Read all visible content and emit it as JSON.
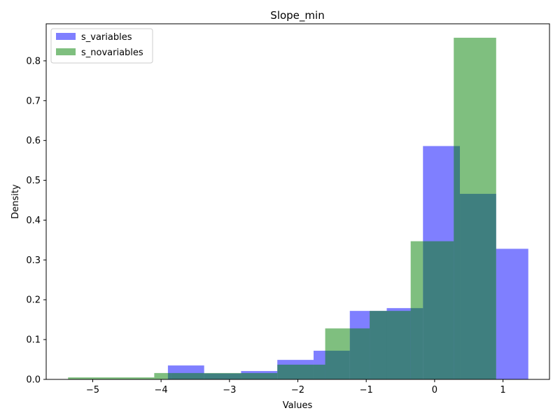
{
  "chart_data": {
    "type": "bar",
    "title": "Slope_min",
    "xlabel": "Values",
    "ylabel": "Density",
    "xlim": [
      -5.68,
      1.68
    ],
    "ylim": [
      0,
      0.893
    ],
    "xticks": [
      -5,
      -4,
      -3,
      -2,
      -1,
      0,
      1
    ],
    "xtick_labels": [
      "−5",
      "−4",
      "−3",
      "−2",
      "−1",
      "0",
      "1"
    ],
    "yticks": [
      0.0,
      0.1,
      0.2,
      0.3,
      0.4,
      0.5,
      0.6,
      0.7,
      0.8
    ],
    "ytick_labels": [
      "0.0",
      "0.1",
      "0.2",
      "0.3",
      "0.4",
      "0.5",
      "0.6",
      "0.7",
      "0.8"
    ],
    "legend_position": "upper-left",
    "series": [
      {
        "name": "s_variables",
        "color": "#0000ff",
        "opacity": 0.5,
        "bins": [
          {
            "x0": -3.9,
            "x1": -3.37,
            "value": 0.035
          },
          {
            "x0": -3.37,
            "x1": -2.83,
            "value": 0.015
          },
          {
            "x0": -2.83,
            "x1": -2.3,
            "value": 0.021
          },
          {
            "x0": -2.3,
            "x1": -1.77,
            "value": 0.049
          },
          {
            "x0": -1.77,
            "x1": -1.24,
            "value": 0.072
          },
          {
            "x0": -1.24,
            "x1": -0.7,
            "value": 0.172
          },
          {
            "x0": -0.7,
            "x1": -0.17,
            "value": 0.179
          },
          {
            "x0": -0.17,
            "x1": 0.37,
            "value": 0.586
          },
          {
            "x0": 0.37,
            "x1": 0.9,
            "value": 0.466
          },
          {
            "x0": 0.9,
            "x1": 1.37,
            "value": 0.328
          }
        ]
      },
      {
        "name": "s_novariables",
        "color": "#008000",
        "opacity": 0.5,
        "bins": [
          {
            "x0": -5.36,
            "x1": -4.1,
            "value": 0.005
          },
          {
            "x0": -4.1,
            "x1": -3.85,
            "value": 0.016
          },
          {
            "x0": -3.85,
            "x1": -3.37,
            "value": 0.016
          },
          {
            "x0": -3.37,
            "x1": -2.83,
            "value": 0.016
          },
          {
            "x0": -2.83,
            "x1": -2.3,
            "value": 0.016
          },
          {
            "x0": -2.3,
            "x1": -1.77,
            "value": 0.037
          },
          {
            "x0": -1.77,
            "x1": -1.6,
            "value": 0.037
          },
          {
            "x0": -1.6,
            "x1": -1.24,
            "value": 0.128
          },
          {
            "x0": -1.24,
            "x1": -0.95,
            "value": 0.128
          },
          {
            "x0": -0.95,
            "x1": -0.7,
            "value": 0.172
          },
          {
            "x0": -0.7,
            "x1": -0.35,
            "value": 0.172
          },
          {
            "x0": -0.35,
            "x1": -0.17,
            "value": 0.347
          },
          {
            "x0": -0.17,
            "x1": 0.28,
            "value": 0.347
          },
          {
            "x0": 0.28,
            "x1": 0.9,
            "value": 0.858
          }
        ]
      }
    ]
  }
}
